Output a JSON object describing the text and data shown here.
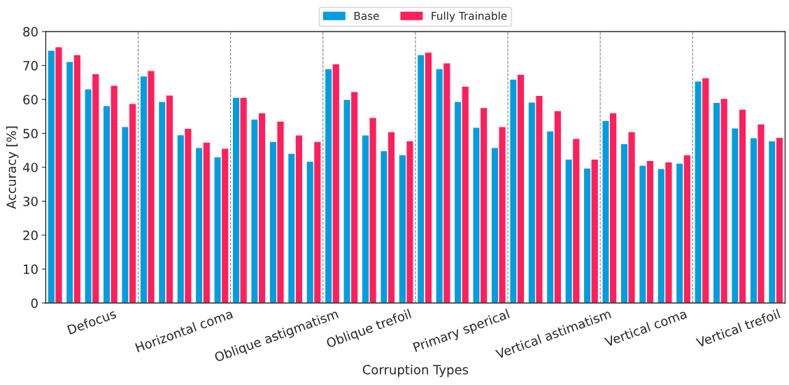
{
  "chart_data": {
    "type": "bar",
    "xlabel": "Corruption Types",
    "ylabel": "Accuracy [%]",
    "categories": [
      null,
      null,
      "Defocus",
      null,
      null,
      null,
      null,
      "Horizontal coma",
      null,
      null,
      null,
      null,
      "Oblique astigmatism",
      null,
      null,
      null,
      null,
      "Oblique trefoil",
      null,
      null,
      null,
      null,
      "Primary sperical",
      null,
      null,
      null,
      null,
      "Vertical astimatism",
      null,
      null,
      null,
      null,
      "Vertical coma",
      null,
      null,
      null,
      null,
      "Vertical trefoil",
      null,
      null
    ],
    "ylim": [
      0,
      80
    ],
    "yticks": [
      0,
      10,
      20,
      30,
      40,
      50,
      60,
      70,
      80
    ],
    "series": [
      {
        "name": "Base",
        "color": "#009ddf",
        "values": [
          74.5,
          71.2,
          63.1,
          58.2,
          52.0,
          66.9,
          59.4,
          49.6,
          45.8,
          43.1,
          60.6,
          54.2,
          47.6,
          44.1,
          41.8,
          69.1,
          60.0,
          49.5,
          44.9,
          43.7,
          73.2,
          69.1,
          59.4,
          51.8,
          45.8,
          66.0,
          59.2,
          50.7,
          42.4,
          39.8,
          53.8,
          47.0,
          40.6,
          39.6,
          41.2,
          65.4,
          59.1,
          51.6,
          48.7,
          47.8
        ]
      },
      {
        "name": "Fully Trainable",
        "color": "#ff1f5b",
        "values": [
          75.5,
          73.2,
          67.6,
          64.2,
          58.8,
          68.5,
          61.3,
          51.5,
          47.4,
          45.6,
          60.6,
          56.1,
          53.6,
          49.5,
          47.6,
          70.5,
          62.3,
          54.7,
          50.5,
          47.8,
          73.9,
          70.8,
          63.9,
          57.6,
          52.0,
          67.4,
          61.2,
          56.7,
          48.5,
          42.4,
          56.1,
          50.5,
          42.0,
          41.6,
          43.7,
          66.4,
          60.3,
          57.1,
          52.8,
          48.8
        ]
      }
    ],
    "grid": false,
    "legend": "top"
  }
}
